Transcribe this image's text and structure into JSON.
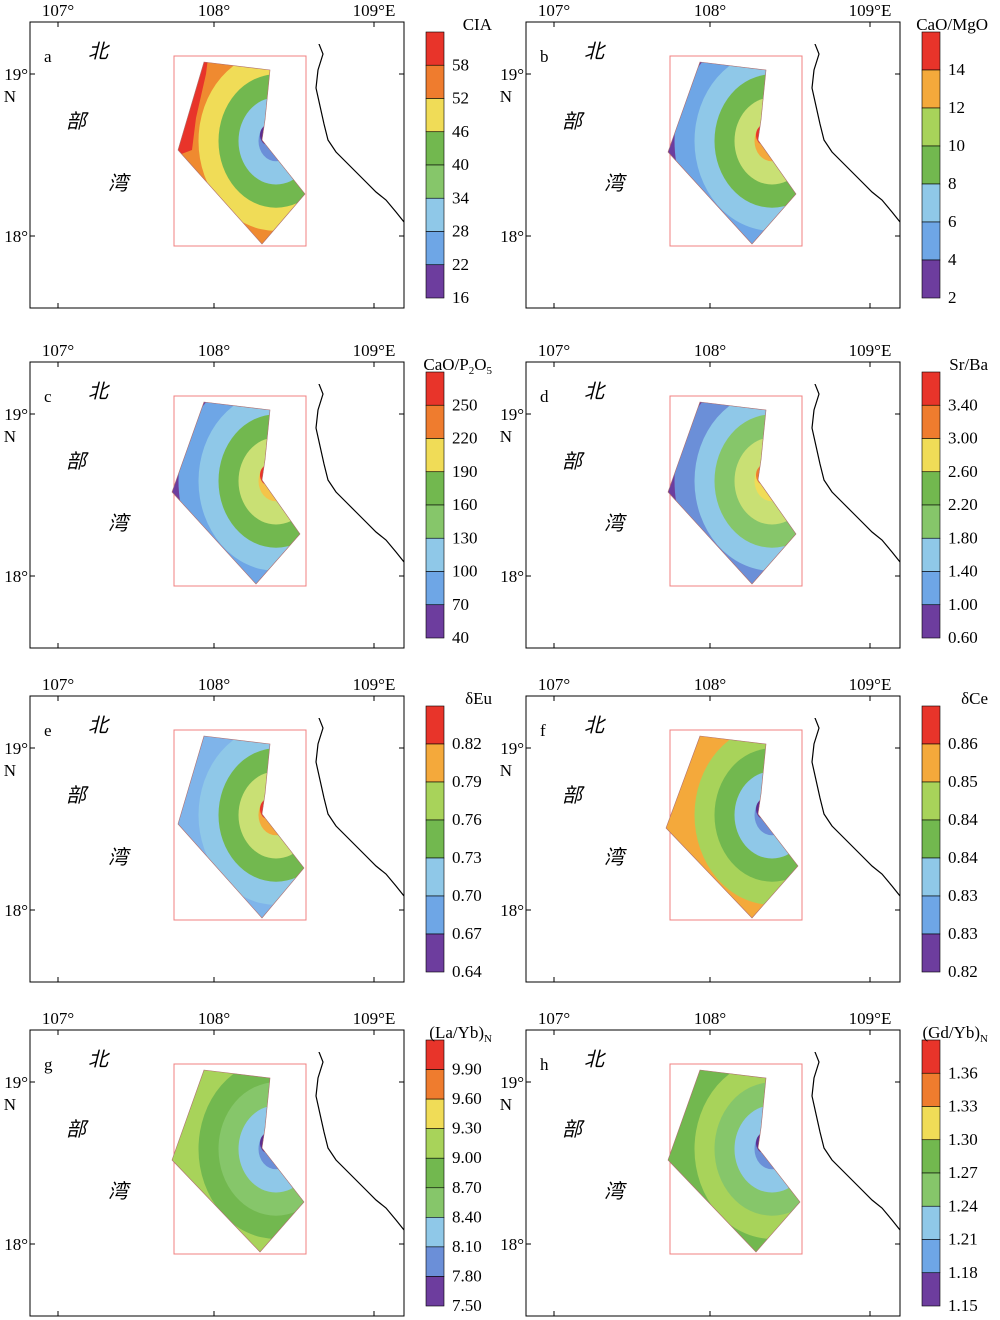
{
  "map": {
    "lon_ticks": [
      "107°",
      "108°",
      "109°E"
    ],
    "lat_ticks": [
      "19°",
      "18°"
    ],
    "lat_hemisphere": "N",
    "place_chars": [
      "北",
      "部",
      "湾"
    ]
  },
  "panels": [
    {
      "letter": "a",
      "legend_title": "CIA",
      "legend_values": [
        "58",
        "52",
        "46",
        "40",
        "34",
        "28",
        "22",
        "16"
      ],
      "shape": "a",
      "center_fill": "#5b2d8e",
      "west_strip": "#e8342a",
      "west_color": "#ef8a30",
      "bands": [
        "#6b8fd8",
        "#8fc8e8",
        "#72b84f",
        "#f0dc57"
      ]
    },
    {
      "letter": "b",
      "legend_title": "CaO/MgO",
      "legend_values": [
        "14",
        "12",
        "10",
        "8",
        "6",
        "4",
        "2"
      ],
      "shape": "b",
      "center_fill": "#e8342a",
      "west_strip": null,
      "west_color": "#6d3d9e",
      "bands": [
        "#f4a93b",
        "#c9e074",
        "#72b84f",
        "#8fc8e8",
        "#6ea6e6"
      ]
    },
    {
      "letter": "c",
      "legend_title": "CaO/P",
      "legend_sub": [
        "2",
        "O",
        "5"
      ],
      "legend_values": [
        "250",
        "220",
        "190",
        "160",
        "130",
        "100",
        "70",
        "40"
      ],
      "shape": "b",
      "center_fill": "#e8342a",
      "west_strip": null,
      "west_color": "#6d3d9e",
      "bands": [
        "#f4c44a",
        "#c9e074",
        "#72b84f",
        "#8fc8e8",
        "#6ea6e6"
      ]
    },
    {
      "letter": "d",
      "legend_title": "Sr/Ba",
      "legend_values": [
        "3.40",
        "3.00",
        "2.60",
        "2.20",
        "1.80",
        "1.40",
        "1.00",
        "0.60"
      ],
      "shape": "b",
      "center_fill": "#ef7c2e",
      "west_strip": null,
      "west_color": "#6d3d9e",
      "bands": [
        "#f0dc57",
        "#c9e074",
        "#86c66a",
        "#8fc8e8",
        "#6b8fd8"
      ]
    },
    {
      "letter": "e",
      "legend_title": "δEu",
      "legend_values": [
        "0.82",
        "0.79",
        "0.76",
        "0.73",
        "0.70",
        "0.67",
        "0.64"
      ],
      "shape": "e",
      "center_fill": "#e8342a",
      "west_strip": null,
      "west_color": "#7fb4ea",
      "bands": [
        "#f4a93b",
        "#c9e074",
        "#72b84f",
        "#8fc8e8"
      ]
    },
    {
      "letter": "f",
      "legend_title": "δCe",
      "legend_values": [
        "0.86",
        "0.85",
        "0.84",
        "0.84",
        "0.83",
        "0.83",
        "0.82"
      ],
      "shape": "f",
      "center_fill": "#5b2d8e",
      "west_strip": null,
      "west_color": "#f4a93b",
      "bands": [
        "#6b8fd8",
        "#8fc8e8",
        "#72b84f",
        "#a8d35a"
      ]
    },
    {
      "letter": "g",
      "legend_title": "(La/Yb)",
      "legend_sub": [
        "N"
      ],
      "legend_values": [
        "9.90",
        "9.60",
        "9.30",
        "9.00",
        "8.70",
        "8.40",
        "8.10",
        "7.80",
        "7.50"
      ],
      "shape": "g",
      "center_fill": "#5b2d8e",
      "west_strip": null,
      "west_color": "#a8d35a",
      "bands": [
        "#6b8fd8",
        "#8fc8e8",
        "#86c66a",
        "#72b84f"
      ]
    },
    {
      "letter": "h",
      "legend_title": "(Gd/Yb)",
      "legend_sub": [
        "N"
      ],
      "legend_values": [
        "1.36",
        "1.33",
        "1.30",
        "1.27",
        "1.24",
        "1.21",
        "1.18",
        "1.15"
      ],
      "shape": "h",
      "center_fill": "#5b2d8e",
      "west_strip": null,
      "west_color": "#72b84f",
      "bands": [
        "#6b8fd8",
        "#8fc8e8",
        "#86c66a",
        "#a8d35a"
      ]
    }
  ],
  "legend_palette": {
    "7": [
      "#e8342a",
      "#f4a93b",
      "#a8d35a",
      "#72b84f",
      "#8fc8e8",
      "#6ea6e6",
      "#6d3d9e"
    ],
    "8": [
      "#e8342a",
      "#ef7c2e",
      "#f0dc57",
      "#72b84f",
      "#86c66a",
      "#8fc8e8",
      "#6ea6e6",
      "#6d3d9e"
    ],
    "9": [
      "#e8342a",
      "#ef7c2e",
      "#f0dc57",
      "#a8d35a",
      "#72b84f",
      "#86c66a",
      "#8fc8e8",
      "#6b8fd8",
      "#6d3d9e"
    ]
  }
}
